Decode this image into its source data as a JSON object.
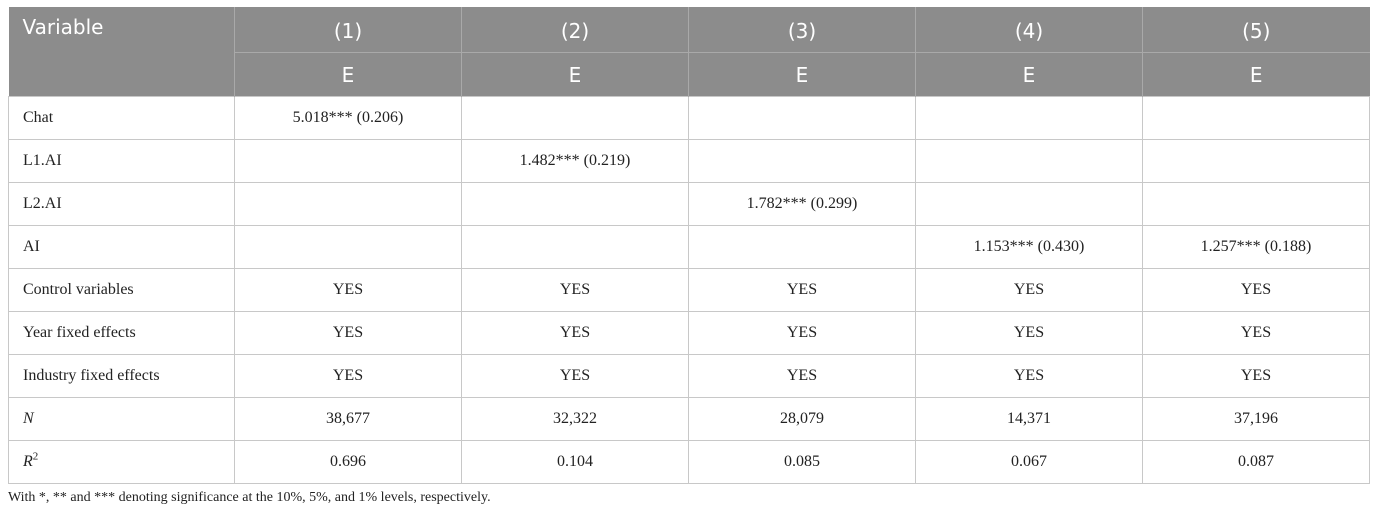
{
  "header": {
    "variable": "Variable",
    "columns": [
      "(1)",
      "(2)",
      "(3)",
      "(4)",
      "(5)"
    ],
    "subheaders": [
      "E",
      "E",
      "E",
      "E",
      "E"
    ]
  },
  "rows": [
    {
      "label": "Chat",
      "cells": [
        "5.018*** (0.206)",
        "",
        "",
        "",
        ""
      ]
    },
    {
      "label": "L1.AI",
      "cells": [
        "",
        "1.482*** (0.219)",
        "",
        "",
        ""
      ]
    },
    {
      "label": "L2.AI",
      "cells": [
        "",
        "",
        "1.782*** (0.299)",
        "",
        ""
      ]
    },
    {
      "label": "AI",
      "cells": [
        "",
        "",
        "",
        "1.153*** (0.430)",
        "1.257*** (0.188)"
      ]
    },
    {
      "label": "Control variables",
      "cells": [
        "YES",
        "YES",
        "YES",
        "YES",
        "YES"
      ]
    },
    {
      "label": "Year fixed effects",
      "cells": [
        "YES",
        "YES",
        "YES",
        "YES",
        "YES"
      ]
    },
    {
      "label": "Industry fixed effects",
      "cells": [
        "YES",
        "YES",
        "YES",
        "YES",
        "YES"
      ]
    },
    {
      "label": "N",
      "cells": [
        "38,677",
        "32,322",
        "28,079",
        "14,371",
        "37,196"
      ]
    },
    {
      "label": "R",
      "label_sup": "2",
      "cells": [
        "0.696",
        "0.104",
        "0.085",
        "0.067",
        "0.087"
      ]
    }
  ],
  "footnote": "With *, ** and *** denoting significance at the 10%, 5%, and 1% levels, respectively."
}
